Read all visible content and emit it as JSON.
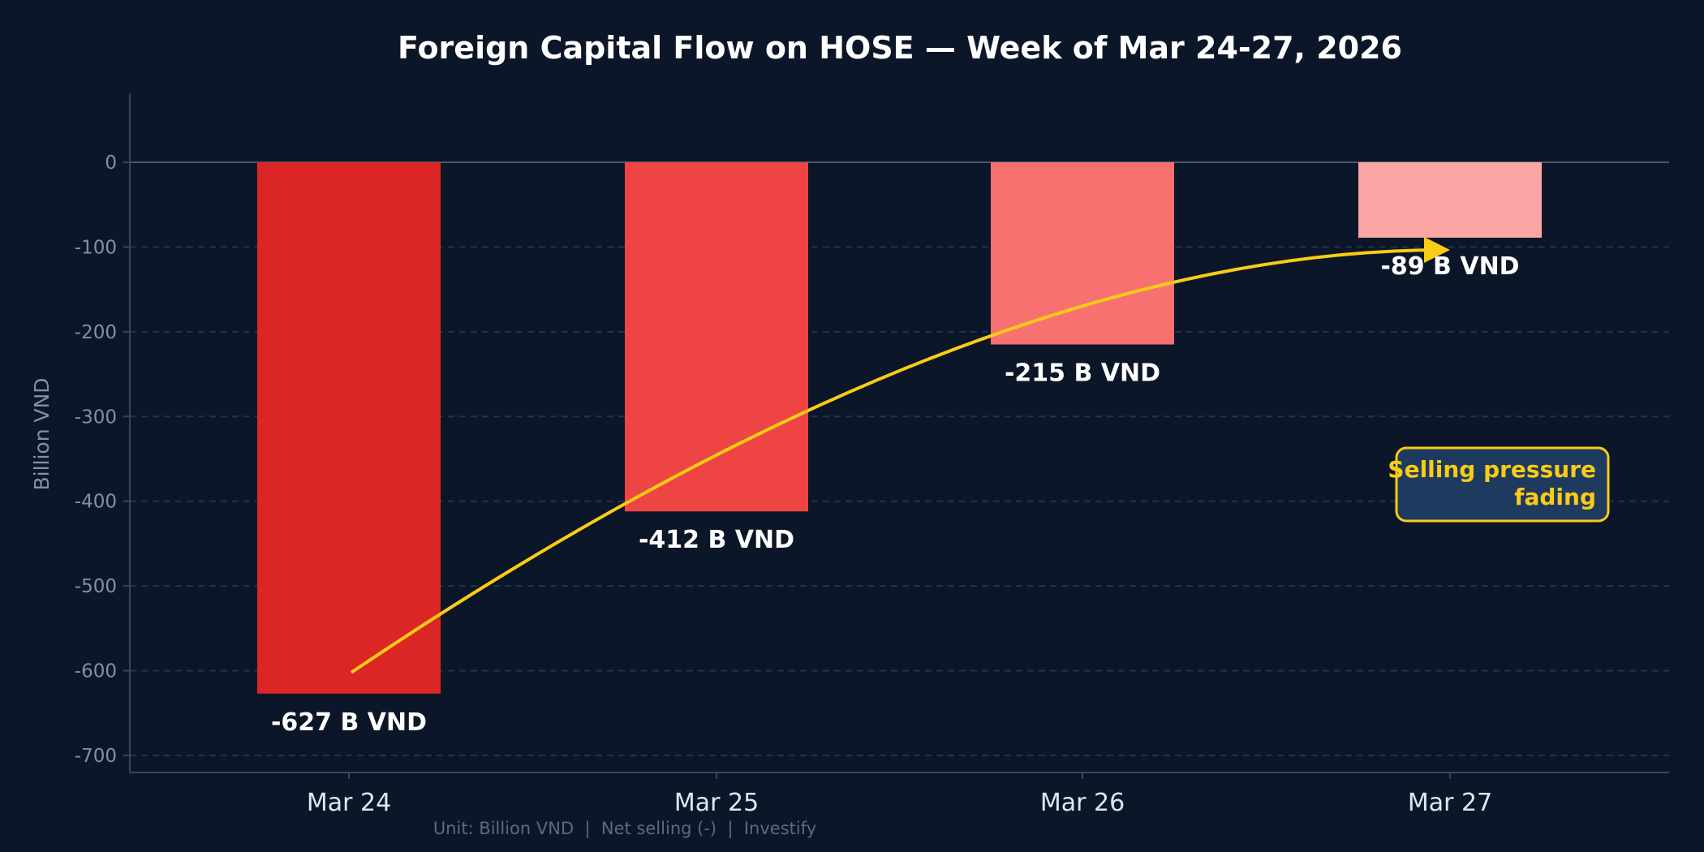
{
  "chart_data": {
    "type": "bar",
    "title": "Foreign Capital Flow on HOSE — Week of Mar 24-27, 2026",
    "xlabel": "",
    "ylabel": "Billion VND",
    "categories": [
      "Mar 24",
      "Mar 25",
      "Mar 26",
      "Mar 27"
    ],
    "values": [
      -627,
      -412,
      -215,
      -89
    ],
    "data_labels": [
      "-627 B VND",
      "-412 B VND",
      "-215 B VND",
      "-89 B VND"
    ],
    "bar_colors": [
      "#dc2626",
      "#ef4444",
      "#f87171",
      "#fca5a5"
    ],
    "ylim": [
      -720,
      80
    ],
    "yticks": [
      0,
      -100,
      -200,
      -300,
      -400,
      -500,
      -600,
      -700
    ],
    "grid": "horizontal dashed",
    "annotation": {
      "text_line1": "Selling pressure",
      "text_line2": "fading",
      "color": "#facc15",
      "box_color": "#1e3a5f",
      "arrow_from": "Mar 24",
      "arrow_to": "Mar 27"
    },
    "footer": "Unit: Billion VND  |  Net selling (-)  |  Investify",
    "background": "#0b1628"
  }
}
